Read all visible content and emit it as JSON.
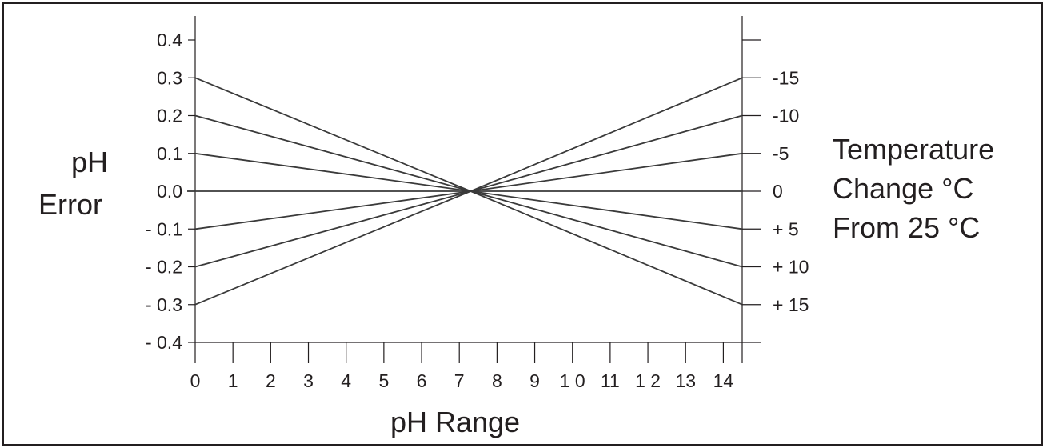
{
  "chart_data": {
    "type": "line",
    "xlabel": "pH Range",
    "ylabel": [
      "pH",
      "Error"
    ],
    "y2label": [
      "Temperature",
      "Change °C",
      "From 25 °C"
    ],
    "x_tick_labels": [
      "0",
      "1",
      "2",
      "3",
      "4",
      "5",
      "6",
      "7",
      "8",
      "9",
      "1 0",
      "11",
      "1 2",
      "13",
      "14"
    ],
    "y_tick_labels": [
      "0.4",
      "0.3",
      "0.2",
      "0.1",
      "0.0",
      "- 0.1",
      "- 0.2",
      "- 0.3",
      "- 0.4"
    ],
    "y_ticks": [
      0.4,
      0.3,
      0.2,
      0.1,
      0.0,
      -0.1,
      -0.2,
      -0.3,
      -0.4
    ],
    "y2_tick_labels": [
      "-15",
      "-10",
      "-5",
      "0",
      "+ 5",
      "+ 10",
      "+ 15"
    ],
    "y2_ticks": [
      0.3,
      0.2,
      0.1,
      0.0,
      -0.1,
      -0.2,
      -0.3
    ],
    "xlim": [
      0,
      14.5
    ],
    "ylim": [
      -0.4,
      0.4
    ],
    "crossover_ph": 7.3,
    "series": [
      {
        "x": [
          0,
          7.3,
          14.5
        ],
        "y": [
          0.3,
          0.0,
          0.3
        ]
      },
      {
        "x": [
          0,
          7.3,
          14.5
        ],
        "y": [
          0.2,
          0.0,
          0.2
        ]
      },
      {
        "x": [
          0,
          7.3,
          14.5
        ],
        "y": [
          0.1,
          0.0,
          0.1
        ]
      },
      {
        "x": [
          0,
          14.5
        ],
        "y": [
          0.0,
          0.0
        ]
      },
      {
        "x": [
          0,
          7.3,
          14.5
        ],
        "y": [
          -0.1,
          0.0,
          -0.1
        ]
      },
      {
        "x": [
          0,
          7.3,
          14.5
        ],
        "y": [
          -0.2,
          0.0,
          -0.2
        ]
      },
      {
        "x": [
          0,
          7.3,
          14.5
        ],
        "y": [
          -0.3,
          0.0,
          -0.3
        ]
      }
    ],
    "grid": false,
    "colors": {
      "line": "#3a3a3a",
      "axis": "#231f20",
      "text": "#231f20"
    }
  }
}
